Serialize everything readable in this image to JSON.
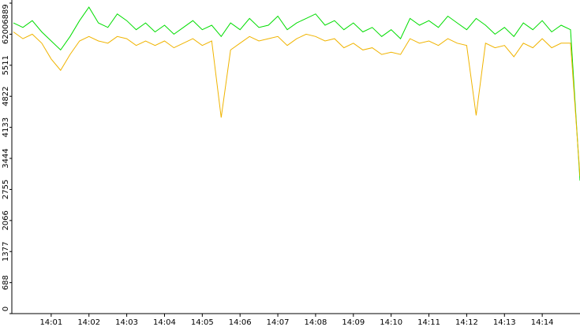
{
  "chart_data": {
    "type": "line",
    "x": [
      0,
      0.25,
      0.5,
      0.75,
      1,
      1.25,
      1.5,
      1.75,
      2,
      2.25,
      2.5,
      2.75,
      3,
      3.25,
      3.5,
      3.75,
      4,
      4.25,
      4.5,
      4.75,
      5,
      5.25,
      5.5,
      5.75,
      6,
      6.25,
      6.5,
      6.75,
      7,
      7.25,
      7.5,
      7.75,
      8,
      8.25,
      8.5,
      8.75,
      9,
      9.25,
      9.5,
      9.75,
      10,
      10.25,
      10.5,
      10.75,
      11,
      11.25,
      11.5,
      11.75,
      12,
      12.25,
      12.5,
      12.75,
      13,
      13.25,
      13.5,
      13.75,
      14,
      14.25,
      14.5,
      14.75,
      15
    ],
    "series": [
      {
        "color": "#00dd00",
        "values": [
          6450,
          6350,
          6500,
          6250,
          6050,
          5850,
          6150,
          6500,
          6800,
          6450,
          6350,
          6650,
          6500,
          6300,
          6450,
          6250,
          6400,
          6200,
          6350,
          6500,
          6300,
          6400,
          6150,
          6450,
          6300,
          6550,
          6350,
          6400,
          6600,
          6300,
          6450,
          6550,
          6650,
          6400,
          6500,
          6300,
          6450,
          6250,
          6350,
          6150,
          6300,
          6100,
          6550,
          6400,
          6500,
          6350,
          6600,
          6450,
          6300,
          6550,
          6400,
          6200,
          6350,
          6150,
          6450,
          6300,
          6500,
          6250,
          6400,
          6300,
          2950
        ]
      },
      {
        "color": "#f0b400",
        "values": [
          6250,
          6100,
          6200,
          6000,
          5650,
          5400,
          5750,
          6050,
          6150,
          6050,
          6000,
          6150,
          6100,
          5950,
          6050,
          5950,
          6050,
          5900,
          6000,
          6100,
          5950,
          6050,
          4350,
          5850,
          6000,
          6150,
          6050,
          6100,
          6150,
          5950,
          6100,
          6200,
          6150,
          6050,
          6100,
          5900,
          6000,
          5850,
          5900,
          5750,
          5800,
          5750,
          6100,
          6000,
          6050,
          5950,
          6100,
          6000,
          5950,
          4400,
          6000,
          5900,
          5950,
          5700,
          6000,
          5900,
          6100,
          5900,
          6000,
          6000,
          3050
        ]
      }
    ],
    "xlim": [
      0,
      15
    ],
    "xticks": [
      {
        "value": 1,
        "label": "14:01"
      },
      {
        "value": 2,
        "label": "14:02"
      },
      {
        "value": 3,
        "label": "14:03"
      },
      {
        "value": 4,
        "label": "14:04"
      },
      {
        "value": 5,
        "label": "14:05"
      },
      {
        "value": 6,
        "label": "14:06"
      },
      {
        "value": 7,
        "label": "14:07"
      },
      {
        "value": 8,
        "label": "14:08"
      },
      {
        "value": 9,
        "label": "14:09"
      },
      {
        "value": 10,
        "label": "14:10"
      },
      {
        "value": 11,
        "label": "14:11"
      },
      {
        "value": 12,
        "label": "14:12"
      },
      {
        "value": 13,
        "label": "14:13"
      },
      {
        "value": 14,
        "label": "14:14"
      }
    ],
    "ylim": [
      0,
      6889
    ],
    "yticks": [
      0,
      688,
      1377,
      2066,
      2755,
      3444,
      4133,
      4822,
      5511,
      6200,
      6889
    ]
  }
}
